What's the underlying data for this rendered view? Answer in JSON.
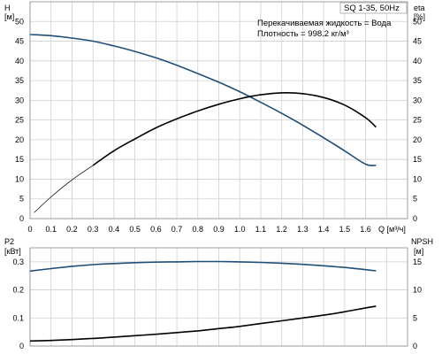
{
  "chart_data": [
    {
      "type": "line",
      "title": "SQ 1-35, 50Hz",
      "annotation": [
        "Перекачиваемая жидкость = Вода",
        "Плотность = 998.2 кг/м³"
      ],
      "xlabel": "Q [м³/ч]",
      "x_ticks": [
        "0",
        "0.1",
        "0.2",
        "0.3",
        "0.4",
        "0.5",
        "0.6",
        "0.7",
        "0.8",
        "0.9",
        "1.0",
        "1.1",
        "1.2",
        "1.3",
        "1.4",
        "1.5",
        "1.6"
      ],
      "xlim": [
        0,
        1.8
      ],
      "left_axis": {
        "label_top": "H",
        "label_unit": "[м]",
        "ylim": [
          0,
          55
        ],
        "ticks": [
          "0",
          "5",
          "10",
          "15",
          "20",
          "25",
          "30",
          "35",
          "40",
          "45",
          "50"
        ]
      },
      "right_axis": {
        "label_top": "eta",
        "label_unit": "[%]",
        "ylim": [
          0,
          55
        ],
        "ticks": [
          "0",
          "5",
          "10",
          "15",
          "20",
          "25",
          "30",
          "35",
          "40",
          "45",
          "50"
        ]
      },
      "grid": true,
      "series": [
        {
          "axis": "left",
          "color": "#1f4e79",
          "points": [
            [
              0,
              46.7
            ],
            [
              0.1,
              46.4
            ],
            [
              0.2,
              45.8
            ],
            [
              0.3,
              45.0
            ],
            [
              0.4,
              43.8
            ],
            [
              0.5,
              42.4
            ],
            [
              0.6,
              40.8
            ],
            [
              0.7,
              38.9
            ],
            [
              0.8,
              36.8
            ],
            [
              0.9,
              34.6
            ],
            [
              1.0,
              32.2
            ],
            [
              1.1,
              29.5
            ],
            [
              1.2,
              26.7
            ],
            [
              1.3,
              23.7
            ],
            [
              1.4,
              20.5
            ],
            [
              1.5,
              17.2
            ],
            [
              1.6,
              13.8
            ],
            [
              1.65,
              13.5
            ]
          ]
        },
        {
          "axis": "right",
          "color": "#000000",
          "thin_until_x": 0.33,
          "points": [
            [
              0.02,
              1.5
            ],
            [
              0.1,
              5.5
            ],
            [
              0.2,
              9.8
            ],
            [
              0.3,
              13.5
            ],
            [
              0.4,
              17.2
            ],
            [
              0.5,
              20.2
            ],
            [
              0.6,
              23.0
            ],
            [
              0.7,
              25.3
            ],
            [
              0.8,
              27.3
            ],
            [
              0.9,
              29.0
            ],
            [
              1.0,
              30.4
            ],
            [
              1.1,
              31.4
            ],
            [
              1.2,
              31.9
            ],
            [
              1.3,
              31.7
            ],
            [
              1.4,
              30.7
            ],
            [
              1.5,
              28.8
            ],
            [
              1.6,
              25.6
            ],
            [
              1.65,
              23.2
            ]
          ]
        }
      ]
    },
    {
      "type": "line",
      "xlim": [
        0,
        1.8
      ],
      "left_axis": {
        "label_top": "P2",
        "label_unit": "[кВт]",
        "ylim": [
          0,
          0.35
        ],
        "ticks": [
          "0",
          "0.1",
          "0.2",
          "0.3"
        ]
      },
      "right_axis": {
        "label_top": "NPSH",
        "label_unit": "[м]",
        "ylim": [
          0,
          17.5
        ],
        "ticks": [
          "0",
          "5",
          "10",
          "15"
        ]
      },
      "grid": true,
      "series": [
        {
          "axis": "left",
          "color": "#1f4e79",
          "points": [
            [
              0,
              0.267
            ],
            [
              0.1,
              0.276
            ],
            [
              0.2,
              0.284
            ],
            [
              0.3,
              0.29
            ],
            [
              0.4,
              0.294
            ],
            [
              0.5,
              0.297
            ],
            [
              0.6,
              0.299
            ],
            [
              0.7,
              0.3
            ],
            [
              0.8,
              0.301
            ],
            [
              0.9,
              0.301
            ],
            [
              1.0,
              0.3
            ],
            [
              1.1,
              0.298
            ],
            [
              1.2,
              0.295
            ],
            [
              1.3,
              0.291
            ],
            [
              1.4,
              0.286
            ],
            [
              1.5,
              0.28
            ],
            [
              1.6,
              0.272
            ],
            [
              1.65,
              0.268
            ]
          ]
        },
        {
          "axis": "right",
          "color": "#000000",
          "points": [
            [
              0,
              0.9
            ],
            [
              0.1,
              1.0
            ],
            [
              0.2,
              1.15
            ],
            [
              0.3,
              1.35
            ],
            [
              0.4,
              1.6
            ],
            [
              0.5,
              1.85
            ],
            [
              0.6,
              2.1
            ],
            [
              0.7,
              2.4
            ],
            [
              0.8,
              2.7
            ],
            [
              0.9,
              3.1
            ],
            [
              1.0,
              3.5
            ],
            [
              1.1,
              4.0
            ],
            [
              1.2,
              4.5
            ],
            [
              1.3,
              5.0
            ],
            [
              1.4,
              5.5
            ],
            [
              1.5,
              6.1
            ],
            [
              1.6,
              6.8
            ],
            [
              1.65,
              7.1
            ]
          ]
        }
      ]
    }
  ]
}
